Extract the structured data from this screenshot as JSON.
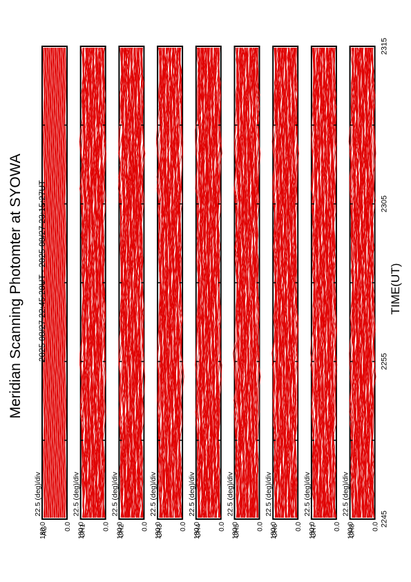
{
  "page": {
    "title": "Meridian Scanning Photomter at SYOWA",
    "time_range": "2025 08/27 22:45:28UT - 2025 08/27 23:15:27UT",
    "xlabel": "TIME(UT)"
  },
  "chart_data": {
    "type": "line",
    "orientation": "rotated-90",
    "x_axis": {
      "label": "TIME(UT)",
      "ticks": [
        "2245",
        "2255",
        "2305",
        "2315"
      ],
      "range": [
        "22:45",
        "23:15"
      ]
    },
    "panel_defaults": {
      "scale_label": "22.5 (deg)/div",
      "y_ticks": [
        "180.0",
        "0.0"
      ],
      "y_range": [
        0,
        180
      ]
    },
    "panels": [
      {
        "channel": "AG",
        "style": "flat",
        "scans": 70
      },
      {
        "channel": "CH1",
        "style": "wavy",
        "scans": 70
      },
      {
        "channel": "CH2",
        "style": "wavy",
        "scans": 70
      },
      {
        "channel": "CH3",
        "style": "wavy",
        "scans": 70
      },
      {
        "channel": "CH4",
        "style": "wavy",
        "scans": 70
      },
      {
        "channel": "CH5",
        "style": "wavy",
        "scans": 70
      },
      {
        "channel": "CH6",
        "style": "wavy",
        "scans": 70
      },
      {
        "channel": "CH7",
        "style": "wavy",
        "scans": 70
      },
      {
        "channel": "CH8",
        "style": "wavy",
        "scans": 70
      }
    ],
    "series_color": "#e00000",
    "grid": false
  }
}
